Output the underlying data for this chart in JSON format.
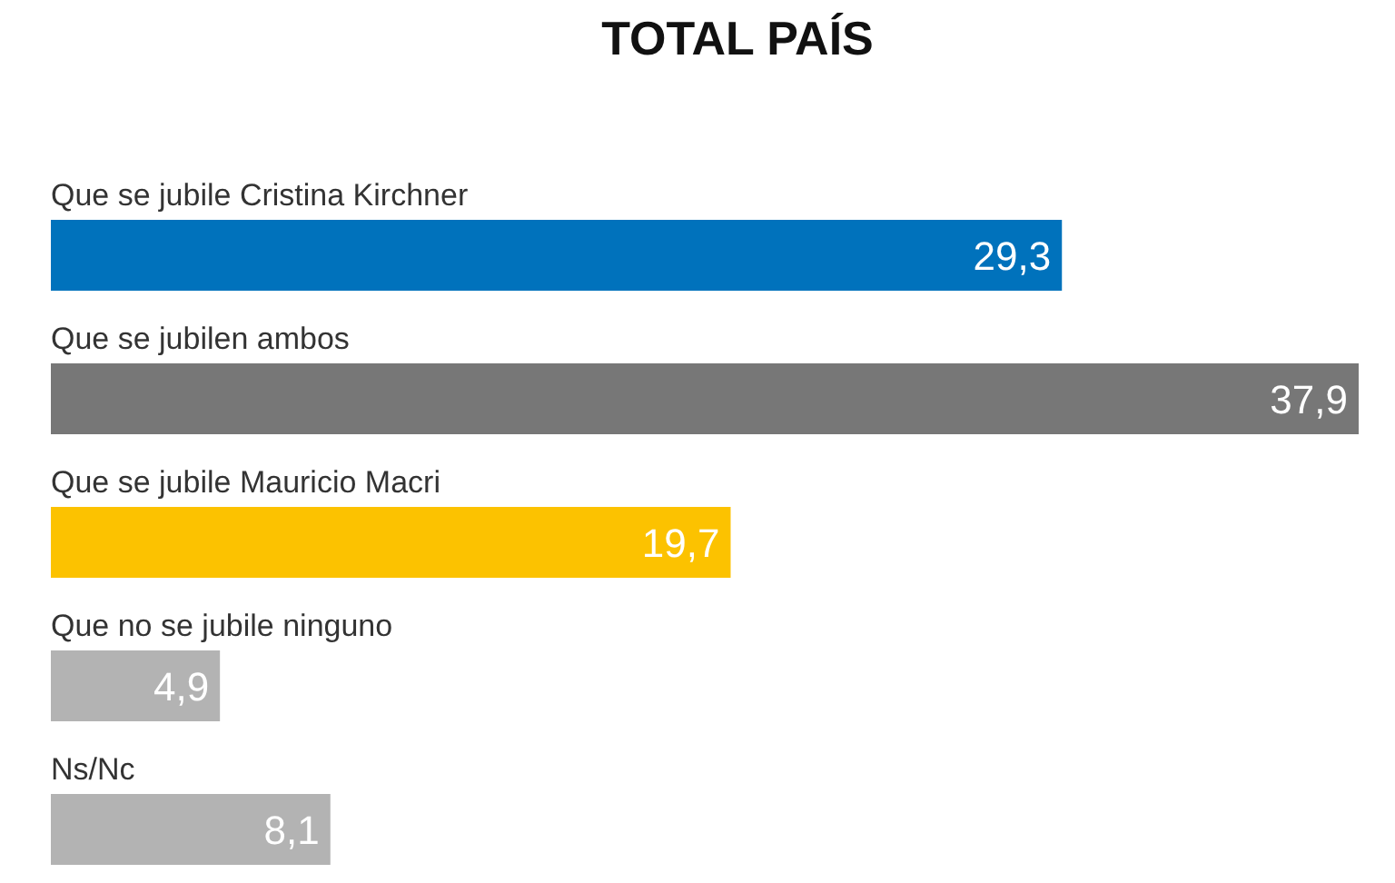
{
  "chart_data": {
    "type": "bar",
    "orientation": "horizontal",
    "title": "TOTAL PAÍS",
    "categories": [
      "Que se jubile Cristina Kirchner",
      "Que se jubilen ambos",
      "Que se jubile Mauricio Macri",
      "Que no se jubile ninguno",
      "Ns/Nc"
    ],
    "values": [
      29.3,
      37.9,
      19.7,
      4.9,
      8.1
    ],
    "colors": [
      "#0072bc",
      "#777777",
      "#fcc200",
      "#b3b3b3",
      "#b3b3b3"
    ],
    "value_labels": [
      "29,3",
      "37,9",
      "19,7",
      "4,9",
      "8,1"
    ],
    "tick_labels": "y"
  }
}
